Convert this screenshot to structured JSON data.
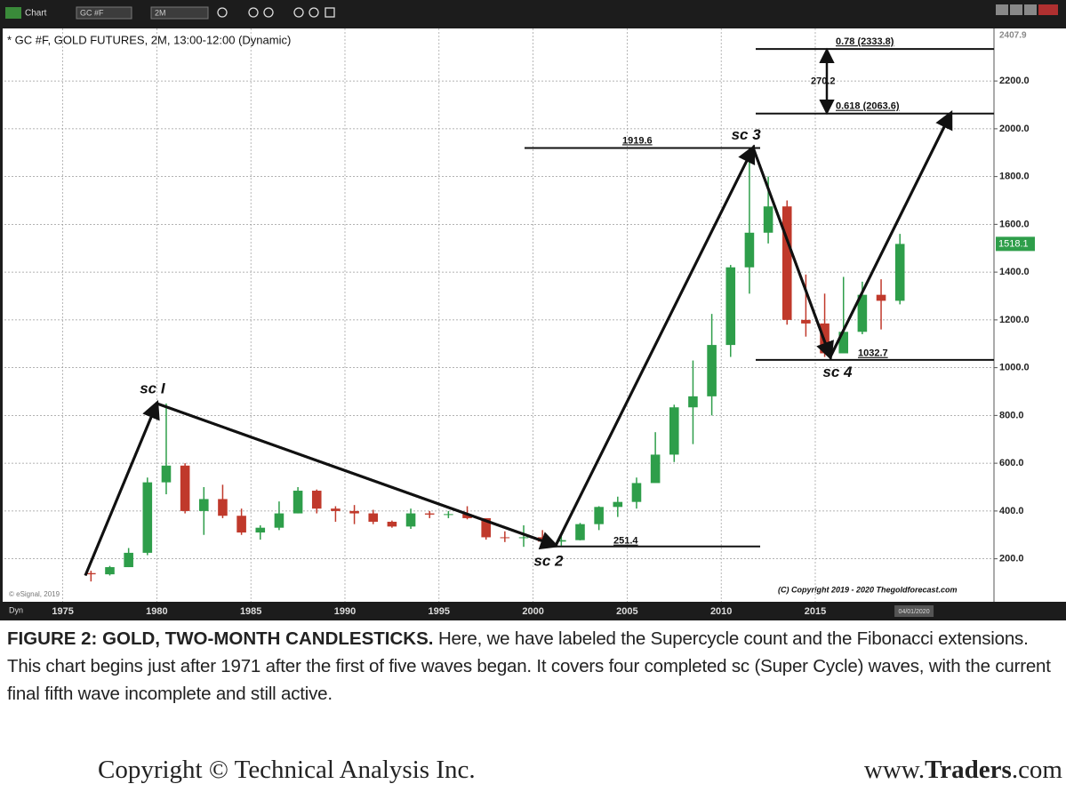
{
  "chart_data": {
    "type": "candlestick",
    "title": "* GC #F, GOLD FUTURES, 2M, 13:00-12:00 (Dynamic)",
    "toolbar": {
      "chart": "Chart",
      "symbol": "GC #F",
      "interval": "2M"
    },
    "xlim": [
      1971.9,
      2024.5
    ],
    "ylim": [
      20,
      2420
    ],
    "xticks": [
      1975,
      1980,
      1985,
      1990,
      1995,
      2000,
      2005,
      2010,
      2015,
      {
        "value": 2020.25,
        "label": "04/01/2020"
      }
    ],
    "yticks": [
      {
        "value": 200,
        "label": "200.0"
      },
      {
        "value": 400,
        "label": "400.0"
      },
      {
        "value": 600,
        "label": "600.0"
      },
      {
        "value": 800,
        "label": "800.0"
      },
      {
        "value": 1000,
        "label": "1000.0"
      },
      {
        "value": 1200,
        "label": "1200.0"
      },
      {
        "value": 1400,
        "label": "1400.0"
      },
      {
        "value": 1600,
        "label": "1600.0"
      },
      {
        "value": 1800,
        "label": "1800.0"
      },
      {
        "value": 2000,
        "label": "2000.0"
      },
      {
        "value": 2200,
        "label": "2200.0"
      }
    ],
    "grid": true,
    "up_color": "#2e9e4a",
    "down_color": "#c0392b",
    "candles": {
      "x": [
        1976.5,
        1977.5,
        1978.5,
        1979.5,
        1980.5,
        1981.5,
        1982.5,
        1983.5,
        1984.5,
        1985.5,
        1986.5,
        1987.5,
        1988.5,
        1989.5,
        1990.5,
        1991.5,
        1992.5,
        1993.5,
        1994.5,
        1995.5,
        1996.5,
        1997.5,
        1998.5,
        1999.5,
        2000.5,
        2001.5,
        2002.5,
        2003.5,
        2004.5,
        2005.5,
        2006.5,
        2007.5,
        2008.5,
        2009.5,
        2010.5,
        2011.5,
        2012.5,
        2013.5,
        2014.5,
        2015.5,
        2016.5,
        2017.5,
        2018.5,
        2019.5
      ],
      "open": [
        140,
        135,
        165,
        225,
        520,
        590,
        400,
        450,
        380,
        310,
        330,
        390,
        485,
        410,
        400,
        390,
        355,
        335,
        390,
        385,
        387,
        370,
        290,
        288,
        290,
        272,
        278,
        345,
        417,
        438,
        517,
        636,
        834,
        880,
        1095,
        1420,
        1565,
        1675,
        1200,
        1185,
        1060,
        1150,
        1305,
        1280
      ],
      "high": [
        150,
        170,
        245,
        540,
        850,
        600,
        500,
        510,
        410,
        340,
        440,
        500,
        490,
        420,
        425,
        405,
        360,
        410,
        400,
        400,
        420,
        370,
        315,
        340,
        320,
        295,
        350,
        420,
        460,
        540,
        730,
        845,
        1030,
        1225,
        1430,
        1920,
        1800,
        1700,
        1390,
        1310,
        1380,
        1360,
        1370,
        1560
      ],
      "low": [
        105,
        130,
        165,
        215,
        470,
        390,
        300,
        370,
        300,
        280,
        320,
        390,
        390,
        355,
        345,
        345,
        330,
        325,
        370,
        370,
        365,
        280,
        270,
        250,
        265,
        255,
        277,
        320,
        375,
        410,
        525,
        605,
        680,
        800,
        1045,
        1310,
        1520,
        1180,
        1130,
        1045,
        1060,
        1140,
        1160,
        1265
      ],
      "close": [
        135,
        165,
        225,
        520,
        590,
        400,
        450,
        380,
        310,
        330,
        390,
        485,
        410,
        400,
        390,
        355,
        335,
        390,
        385,
        387,
        370,
        290,
        288,
        290,
        272,
        278,
        345,
        417,
        438,
        517,
        636,
        834,
        880,
        1095,
        1420,
        1565,
        1675,
        1200,
        1185,
        1060,
        1150,
        1305,
        1280,
        1518
      ]
    },
    "waves": {
      "x": [
        1976.2,
        1980,
        2001.2,
        2011.7,
        2015.8,
        2022.2
      ],
      "y": [
        130,
        850,
        255,
        1920,
        1045,
        2063.6
      ],
      "labels": [
        null,
        "sc I",
        "sc 2",
        "sc 3",
        "sc 4",
        null
      ]
    },
    "levels": [
      1919.6,
      251.4,
      1032.7,
      {
        "value": 2333.8,
        "label": "0.78 (2333.8)"
      },
      {
        "value": 2063.6,
        "label": "0.618 (2063.6)"
      }
    ],
    "range_label": 270.2,
    "last_price": 1518.1,
    "axis_top_label": 2407.9,
    "source": "© eSignal, 2019",
    "mode": "Dyn",
    "copyright_note": "(C) Copyright 2019 - 2020 Thegoldforecast.com"
  },
  "caption": {
    "lead": "FIGURE 2: GOLD, TWO-MONTH CANDLESTICKS.",
    "text": "Here, we have labeled the Supercycle count and the Fibonacci extensions. This chart begins just after 1971 after the first of five waves began. It covers four completed sc (Super Cycle) waves, with the current final fifth wave incomplete and still active."
  },
  "footer": {
    "copyright": "Copyright © Technical Analysis Inc.",
    "url_prefix": "www.",
    "url_brand": "Traders",
    "url_suffix": ".com"
  }
}
